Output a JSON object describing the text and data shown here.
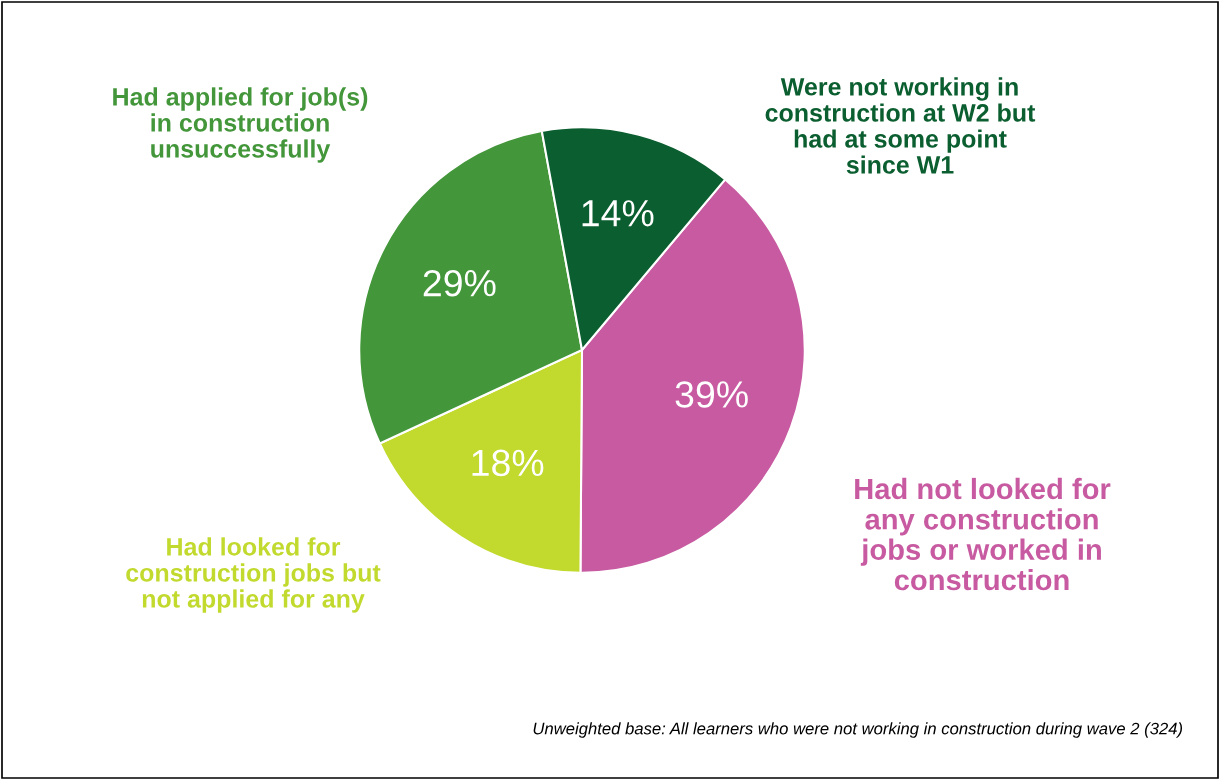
{
  "chart_data": {
    "type": "pie",
    "categories": [
      "Had not looked for\nany construction\njobs or worked in\nconstruction",
      "Had looked for\nconstruction jobs but\nnot applied for any",
      "Had applied for job(s)\nin construction\nunsuccessfully",
      "Were not working in\nconstruction at W2 but\nhad at some point\nsince W1"
    ],
    "values": [
      39,
      18,
      29,
      14
    ],
    "value_labels": [
      "39%",
      "18%",
      "29%",
      "14%"
    ],
    "colors": [
      "#c75aa0",
      "#c2d92e",
      "#43963a",
      "#0b5e2f"
    ],
    "legend": false,
    "annotations": [
      "Unweighted base: All learners who were not working in construction during wave 2 (324)"
    ]
  }
}
